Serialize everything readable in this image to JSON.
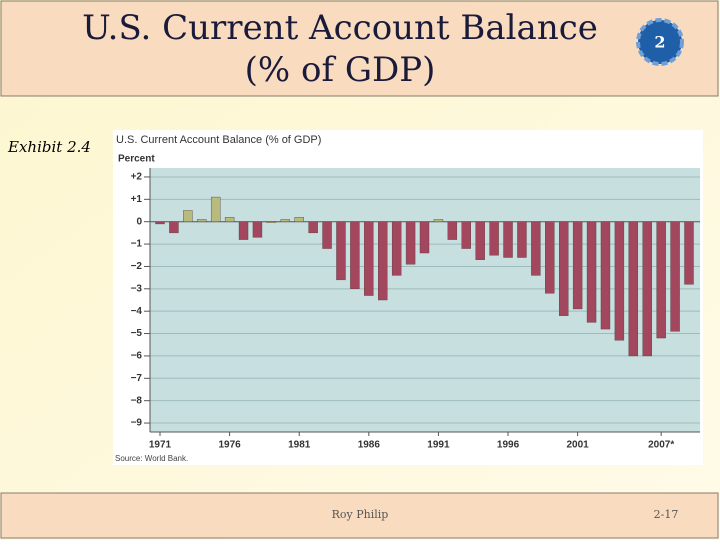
{
  "slide": {
    "title_lines": [
      "U.S. Current Account Balance",
      "(% of GDP)"
    ],
    "badge": "2",
    "exhibit": "Exhibit 2.4",
    "footer_author": "Roy Philip",
    "footer_page": "2-17"
  },
  "chart_data": {
    "type": "bar",
    "title": "U.S. Current Account Balance (% of GDP)",
    "y_label": "Percent",
    "source": "Source: World Bank.",
    "categories": [
      "1971",
      null,
      null,
      null,
      null,
      "1976",
      null,
      null,
      null,
      null,
      "1981",
      null,
      null,
      null,
      null,
      "1986",
      null,
      null,
      null,
      null,
      "1991",
      null,
      null,
      null,
      null,
      "1996",
      null,
      null,
      null,
      null,
      "2001",
      null,
      null,
      null,
      null,
      null,
      "2007*",
      null,
      null
    ],
    "values": [
      -0.1,
      -0.5,
      0.5,
      0.1,
      1.1,
      0.2,
      -0.8,
      -0.7,
      0.0,
      0.1,
      0.2,
      -0.5,
      -1.2,
      -2.6,
      -3.0,
      -3.3,
      -3.5,
      -2.4,
      -1.9,
      -1.4,
      0.1,
      -0.8,
      -1.2,
      -1.7,
      -1.5,
      -1.6,
      -1.6,
      -2.4,
      -3.2,
      -4.2,
      -3.9,
      -4.5,
      -4.8,
      -5.3,
      -6.0,
      -6.0,
      -5.2,
      -4.9,
      -2.8
    ],
    "positive_color": "#b9bb7c",
    "negative_color": "#a3475f",
    "ylim": [
      -9.4,
      2.4
    ],
    "yticks": [
      {
        "value": 2,
        "label": "+2"
      },
      {
        "value": 1,
        "label": "+1"
      },
      0,
      {
        "value": -1,
        "label": "−1"
      },
      {
        "value": -2,
        "label": "−2"
      },
      {
        "value": -3,
        "label": "−3"
      },
      {
        "value": -4,
        "label": "−4"
      },
      {
        "value": -5,
        "label": "−5"
      },
      {
        "value": -6,
        "label": "−6"
      },
      {
        "value": -7,
        "label": "−7"
      },
      {
        "value": -8,
        "label": "−8"
      },
      {
        "value": -9,
        "label": "−9"
      }
    ],
    "grid": true
  }
}
